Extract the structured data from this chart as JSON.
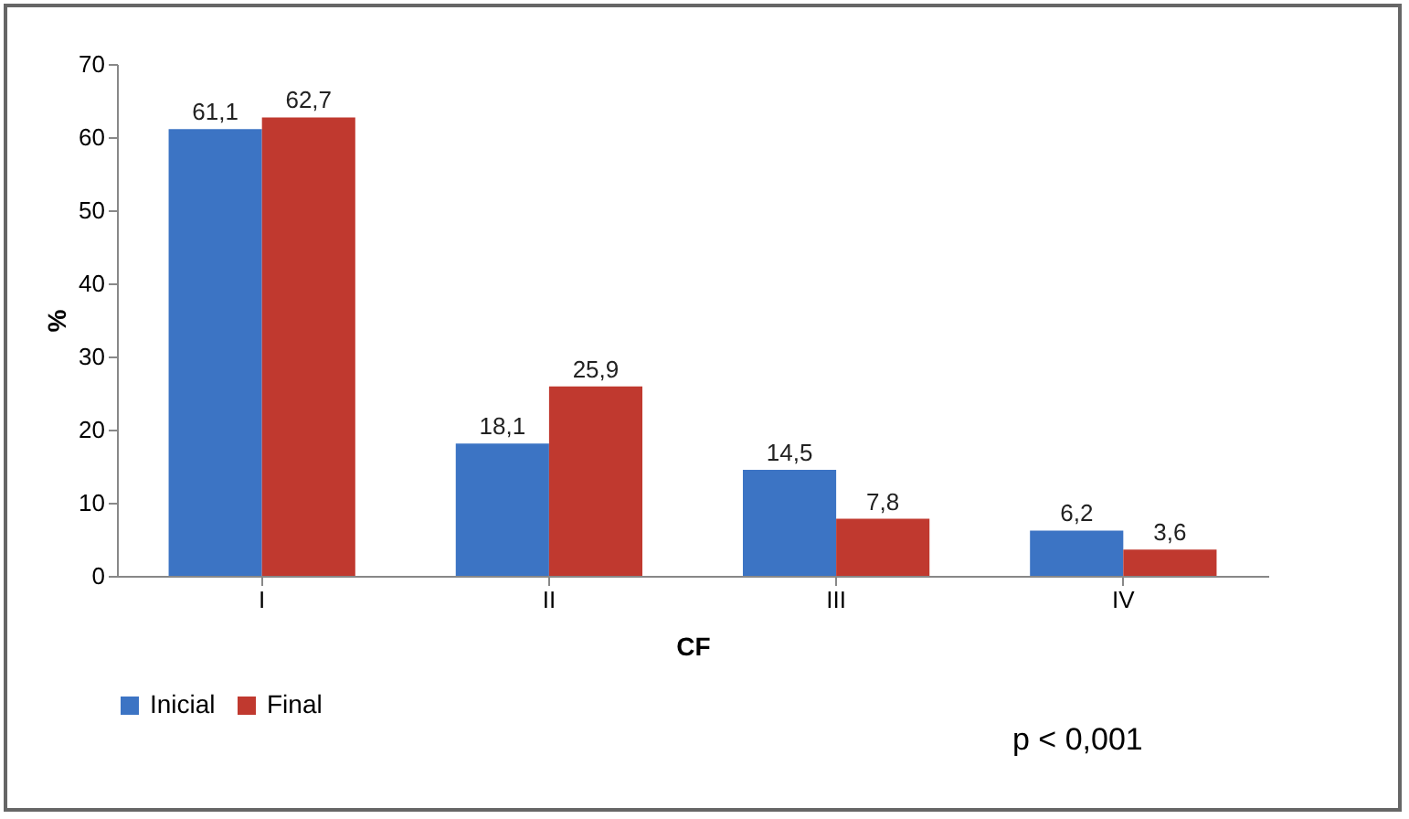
{
  "chart_data": {
    "type": "bar",
    "xlabel": "CF",
    "ylabel": "%",
    "categories": [
      "I",
      "II",
      "III",
      "IV"
    ],
    "series": [
      {
        "name": "Inicial",
        "color": "#3c74c4",
        "values": [
          61.1,
          18.1,
          14.5,
          6.2
        ],
        "value_labels": [
          "61,1",
          "18,1",
          "14,5",
          "6,2"
        ]
      },
      {
        "name": "Final",
        "color": "#c0392f",
        "values": [
          62.7,
          25.9,
          7.8,
          3.6
        ],
        "value_labels": [
          "62,7",
          "25,9",
          "7,8",
          "3,6"
        ]
      }
    ],
    "ylim": [
      0,
      70
    ],
    "yticks": [
      0,
      10,
      20,
      30,
      40,
      50,
      60,
      70
    ],
    "legend": "bottom",
    "annotations": [
      "p < 0,001"
    ]
  }
}
